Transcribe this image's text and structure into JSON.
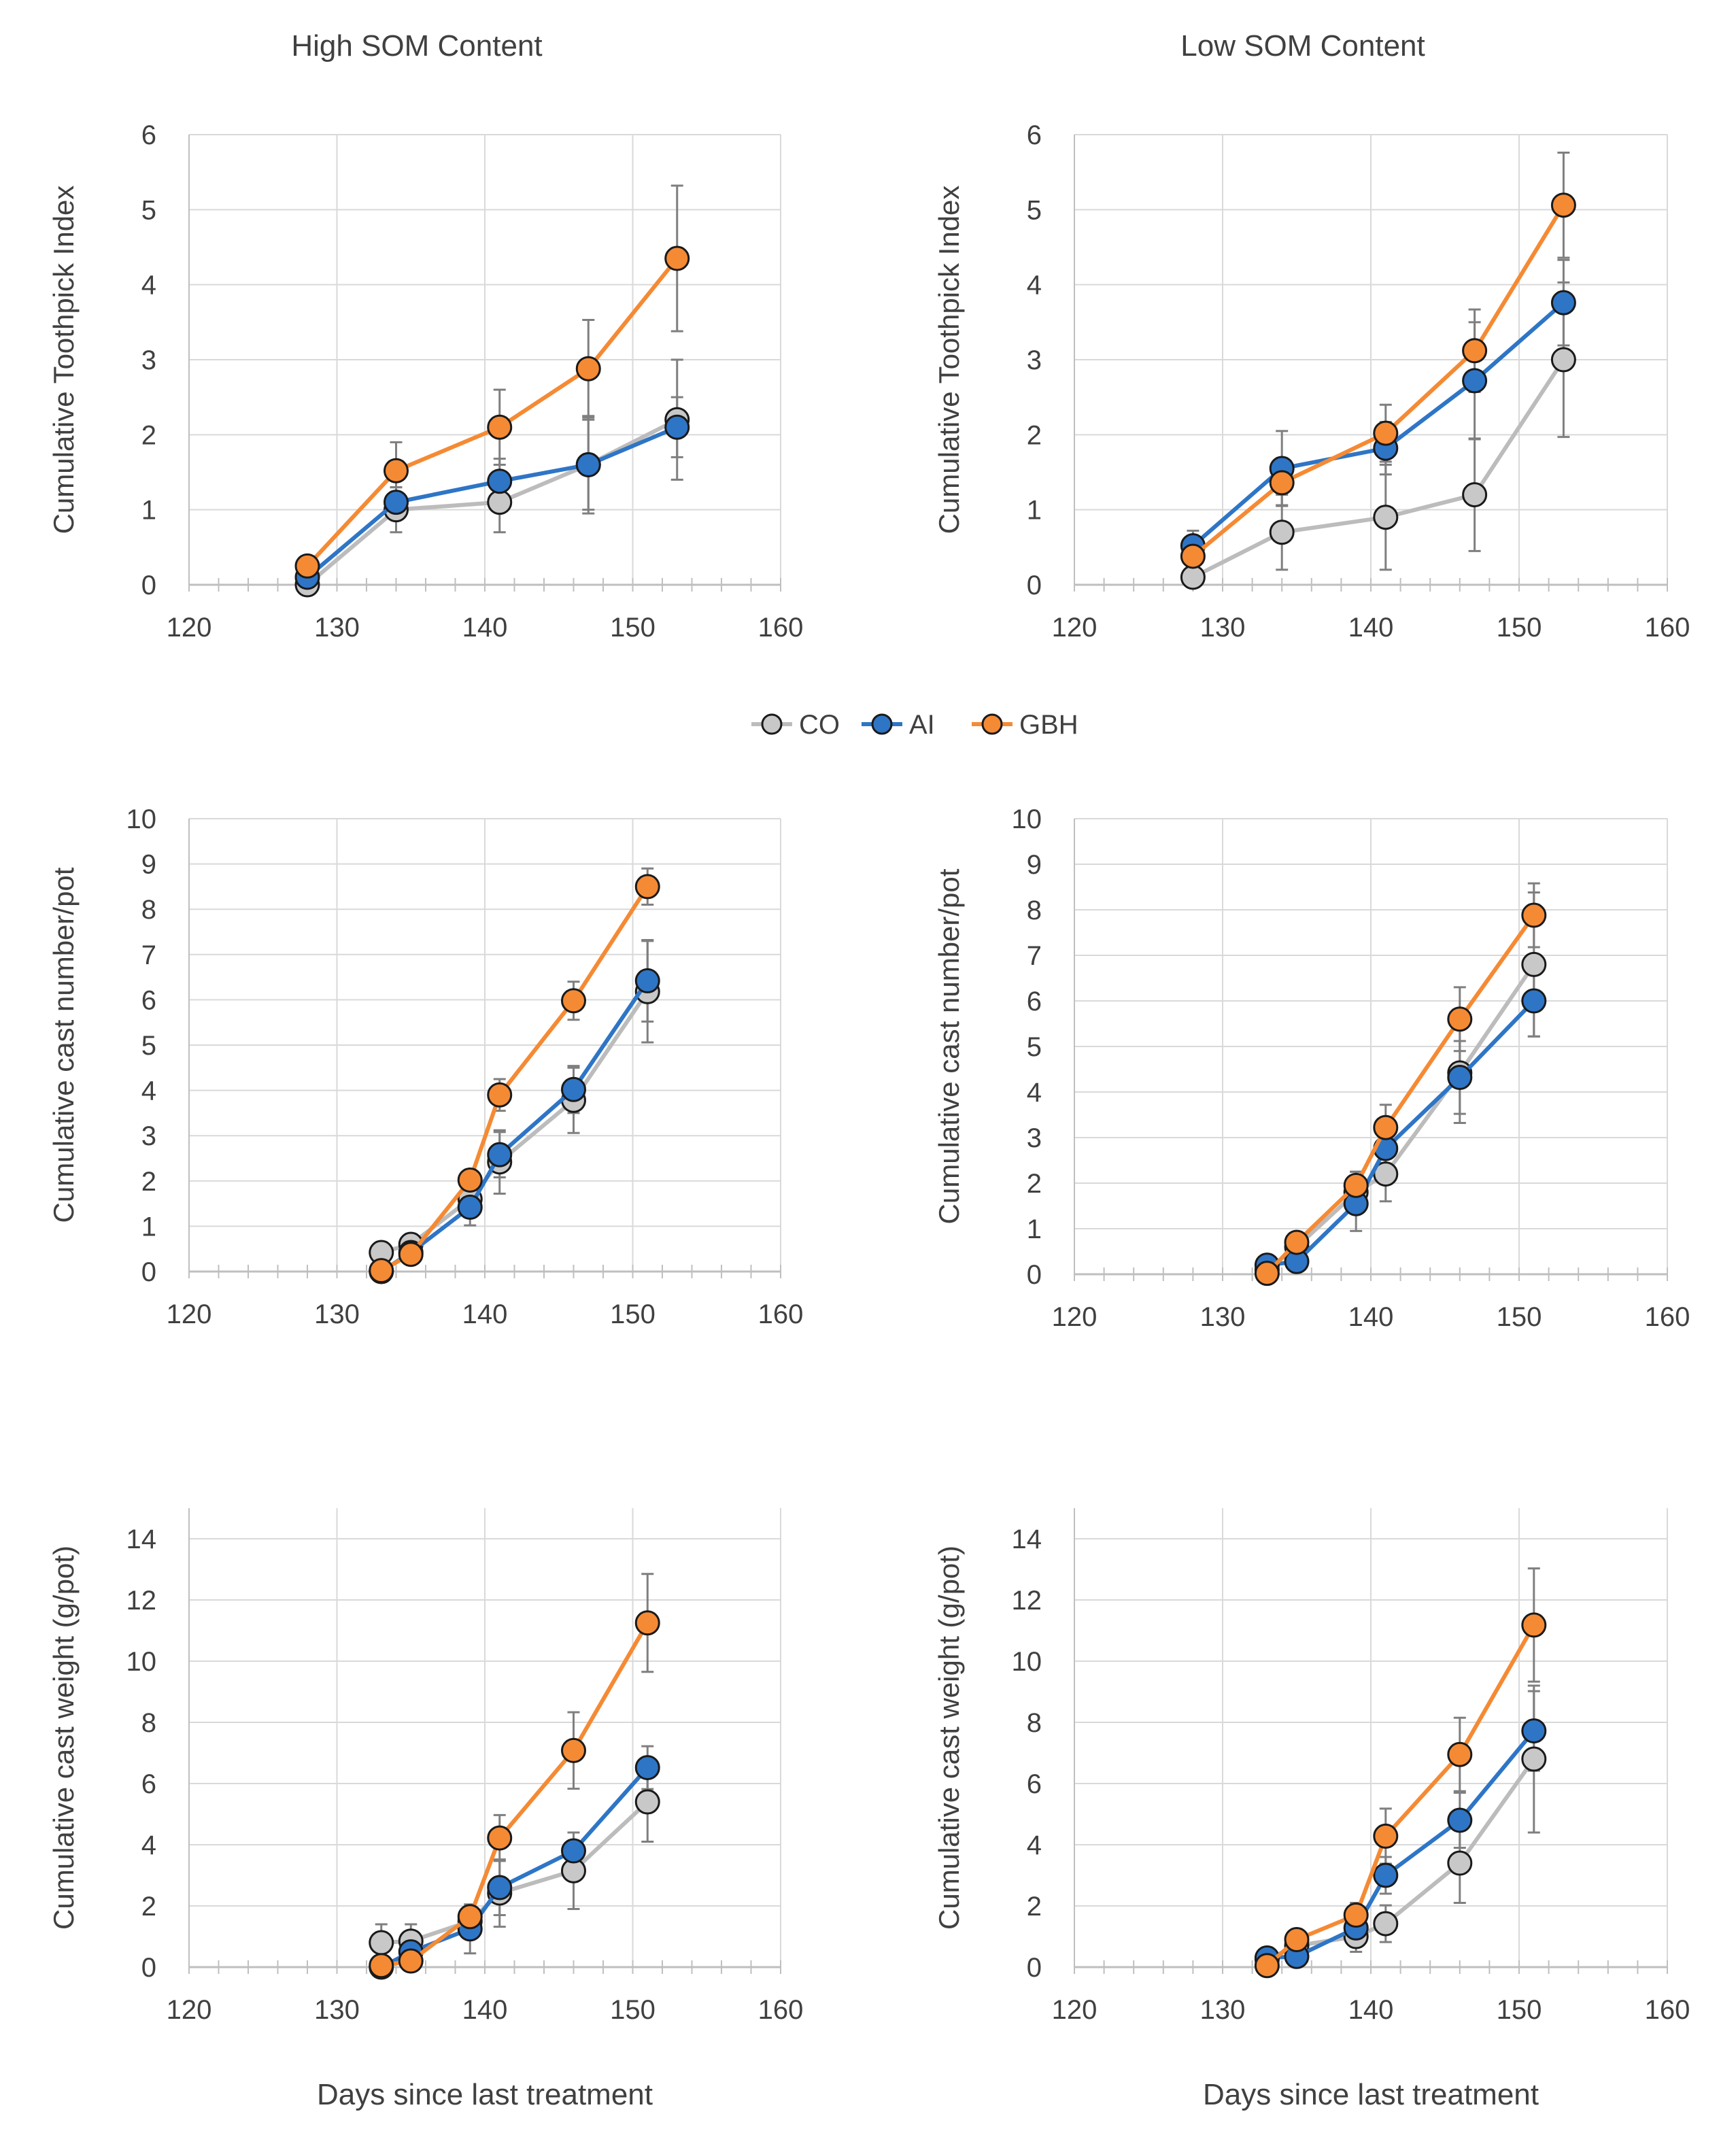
{
  "legend": {
    "items": [
      {
        "name": "CO",
        "fill": "#c8c8c8",
        "line": "#bcbcbc"
      },
      {
        "name": "AI",
        "fill": "#2e75c6",
        "line": "#2e75c6"
      },
      {
        "name": "GBH",
        "fill": "#f58a34",
        "line": "#f58a34"
      }
    ]
  },
  "colors": {
    "grid": "#d9d9d9",
    "axis": "#bfbfbf",
    "error_bar": "#7f7f7f",
    "marker_edge": "#1a1a1a",
    "text": "#404040"
  },
  "chart_data": [
    {
      "id": "toothpick-high",
      "type": "line",
      "title": "High SOM Content",
      "xlabel": "",
      "ylabel": "Cumulative Toothpick Index",
      "xlim": [
        120,
        160
      ],
      "ylim": [
        0,
        6
      ],
      "xticks": [
        120,
        130,
        140,
        150,
        160
      ],
      "yticks": [
        0,
        1,
        2,
        3,
        4,
        5,
        6
      ],
      "grid": true,
      "series": [
        {
          "name": "CO",
          "x": [
            128,
            134,
            141,
            147,
            153
          ],
          "y": [
            0.0,
            1.0,
            1.1,
            1.6,
            2.2
          ],
          "err": [
            0.0,
            0.3,
            0.4,
            0.65,
            0.8
          ]
        },
        {
          "name": "AI",
          "x": [
            128,
            134,
            141,
            147,
            153
          ],
          "y": [
            0.1,
            1.1,
            1.38,
            1.6,
            2.1
          ],
          "err": [
            0.0,
            0.2,
            0.3,
            0.6,
            0.4
          ]
        },
        {
          "name": "GBH",
          "x": [
            128,
            134,
            141,
            147,
            153
          ],
          "y": [
            0.25,
            1.52,
            2.1,
            2.88,
            4.35
          ],
          "err": [
            0.1,
            0.38,
            0.5,
            0.65,
            0.97
          ]
        }
      ]
    },
    {
      "id": "toothpick-low",
      "type": "line",
      "title": "Low SOM Content",
      "xlabel": "",
      "ylabel": "Cumulative Toothpick Index",
      "xlim": [
        120,
        160
      ],
      "ylim": [
        0,
        6
      ],
      "xticks": [
        120,
        130,
        140,
        150,
        160
      ],
      "yticks": [
        0,
        1,
        2,
        3,
        4,
        5,
        6
      ],
      "grid": true,
      "series": [
        {
          "name": "CO",
          "x": [
            128,
            134,
            141,
            147,
            153
          ],
          "y": [
            0.1,
            0.7,
            0.9,
            1.2,
            3.0
          ],
          "err": [
            0.0,
            0.5,
            0.7,
            0.75,
            1.03
          ]
        },
        {
          "name": "AI",
          "x": [
            128,
            134,
            141,
            147,
            153
          ],
          "y": [
            0.52,
            1.55,
            1.82,
            2.72,
            3.76
          ],
          "err": [
            0.2,
            0.5,
            0.35,
            0.78,
            0.57
          ]
        },
        {
          "name": "GBH",
          "x": [
            128,
            134,
            141,
            147,
            153
          ],
          "y": [
            0.38,
            1.36,
            2.02,
            3.12,
            5.06
          ],
          "err": [
            0.15,
            0.3,
            0.38,
            0.55,
            0.7
          ]
        }
      ]
    },
    {
      "id": "cast-number-high",
      "type": "line",
      "title": "",
      "xlabel": "",
      "ylabel": "Cumulative cast number/pot",
      "xlim": [
        120,
        160
      ],
      "ylim": [
        0,
        10
      ],
      "xticks": [
        120,
        130,
        140,
        150,
        160
      ],
      "yticks": [
        0,
        1,
        2,
        3,
        4,
        5,
        6,
        7,
        8,
        9,
        10
      ],
      "grid": true,
      "series": [
        {
          "name": "CO",
          "x": [
            133,
            135,
            139,
            141,
            146,
            151
          ],
          "y": [
            0.42,
            0.6,
            1.6,
            2.42,
            3.78,
            6.18
          ],
          "err": [
            0.0,
            0.0,
            0.4,
            0.7,
            0.72,
            1.12
          ]
        },
        {
          "name": "AI",
          "x": [
            133,
            135,
            139,
            141,
            146,
            151
          ],
          "y": [
            0.0,
            0.42,
            1.42,
            2.58,
            4.02,
            6.42
          ],
          "err": [
            0.0,
            0.0,
            0.4,
            0.5,
            0.52,
            0.9
          ]
        },
        {
          "name": "GBH",
          "x": [
            133,
            135,
            139,
            141,
            146,
            151
          ],
          "y": [
            0.02,
            0.38,
            2.02,
            3.9,
            5.98,
            8.5
          ],
          "err": [
            0.0,
            0.0,
            0.2,
            0.35,
            0.42,
            0.4
          ]
        }
      ]
    },
    {
      "id": "cast-number-low",
      "type": "line",
      "title": "",
      "xlabel": "",
      "ylabel": "Cumulative cast number/pot",
      "xlim": [
        120,
        160
      ],
      "ylim": [
        0,
        10
      ],
      "xticks": [
        120,
        130,
        140,
        150,
        160
      ],
      "yticks": [
        0,
        1,
        2,
        3,
        4,
        5,
        6,
        7,
        8,
        9,
        10
      ],
      "grid": true,
      "series": [
        {
          "name": "CO",
          "x": [
            133,
            135,
            139,
            141,
            146,
            151
          ],
          "y": [
            0.1,
            0.6,
            1.8,
            2.2,
            4.42,
            6.8
          ],
          "err": [
            0.0,
            0.2,
            0.45,
            0.6,
            1.1,
            1.58
          ]
        },
        {
          "name": "AI",
          "x": [
            133,
            135,
            139,
            141,
            146,
            151
          ],
          "y": [
            0.2,
            0.28,
            1.55,
            2.76,
            4.32,
            6.0
          ],
          "err": [
            0.0,
            0.0,
            0.6,
            0.6,
            0.8,
            0.78
          ]
        },
        {
          "name": "GBH",
          "x": [
            133,
            135,
            139,
            141,
            146,
            151
          ],
          "y": [
            0.02,
            0.7,
            1.95,
            3.22,
            5.6,
            7.88
          ],
          "err": [
            0.0,
            0.2,
            0.3,
            0.5,
            0.7,
            0.7
          ]
        }
      ]
    },
    {
      "id": "cast-weight-high",
      "type": "line",
      "title": "",
      "xlabel": "Days since last treatment",
      "ylabel": "Cumulative cast weight (g/pot)",
      "xlim": [
        120,
        160
      ],
      "ylim": [
        0,
        15
      ],
      "xticks": [
        120,
        130,
        140,
        150,
        160
      ],
      "yticks": [
        0,
        2,
        4,
        6,
        8,
        10,
        12,
        14
      ],
      "grid": true,
      "series": [
        {
          "name": "CO",
          "x": [
            133,
            135,
            139,
            141,
            146,
            151
          ],
          "y": [
            0.8,
            0.85,
            1.5,
            2.42,
            3.15,
            5.4
          ],
          "err": [
            0.6,
            0.55,
            0.0,
            1.1,
            1.25,
            1.3
          ]
        },
        {
          "name": "AI",
          "x": [
            133,
            135,
            139,
            141,
            146,
            151
          ],
          "y": [
            0.0,
            0.5,
            1.25,
            2.6,
            3.8,
            6.52
          ],
          "err": [
            0.0,
            0.0,
            0.8,
            0.9,
            0.6,
            0.7
          ]
        },
        {
          "name": "GBH",
          "x": [
            133,
            135,
            139,
            141,
            146,
            151
          ],
          "y": [
            0.05,
            0.2,
            1.65,
            4.22,
            7.08,
            11.25
          ],
          "err": [
            0.0,
            0.0,
            0.3,
            0.75,
            1.25,
            1.6
          ]
        }
      ]
    },
    {
      "id": "cast-weight-low",
      "type": "line",
      "title": "",
      "xlabel": "Days since last treatment",
      "ylabel": "Cumulative cast weight (g/pot)",
      "xlim": [
        120,
        160
      ],
      "ylim": [
        0,
        15
      ],
      "xticks": [
        120,
        130,
        140,
        150,
        160
      ],
      "yticks": [
        0,
        2,
        4,
        6,
        8,
        10,
        12,
        14
      ],
      "grid": true,
      "series": [
        {
          "name": "CO",
          "x": [
            133,
            135,
            139,
            141,
            146,
            151
          ],
          "y": [
            0.25,
            0.7,
            1.0,
            1.42,
            3.4,
            6.8
          ],
          "err": [
            0.0,
            0.2,
            0.5,
            0.6,
            1.3,
            2.4
          ]
        },
        {
          "name": "AI",
          "x": [
            133,
            135,
            139,
            141,
            146,
            151
          ],
          "y": [
            0.3,
            0.35,
            1.28,
            3.0,
            4.8,
            7.72
          ],
          "err": [
            0.0,
            0.0,
            0.5,
            0.6,
            0.9,
            1.3
          ]
        },
        {
          "name": "GBH",
          "x": [
            133,
            135,
            139,
            141,
            146,
            151
          ],
          "y": [
            0.05,
            0.9,
            1.7,
            4.28,
            6.95,
            11.18
          ],
          "err": [
            0.0,
            0.2,
            0.4,
            0.9,
            1.2,
            1.85
          ]
        }
      ]
    }
  ]
}
